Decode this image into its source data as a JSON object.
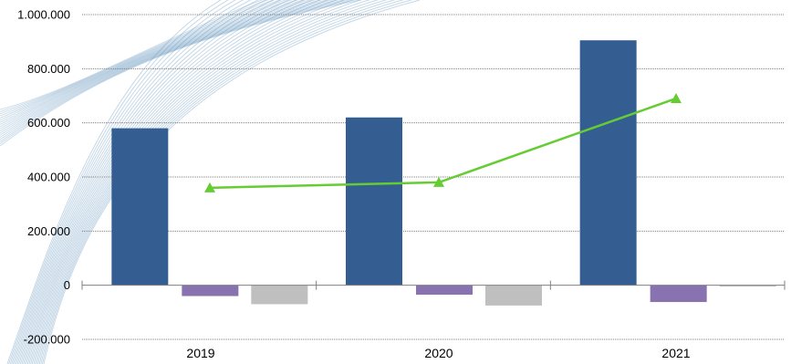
{
  "chart_data": {
    "type": "bar",
    "categories": [
      "2019",
      "2020",
      "2021"
    ],
    "series": [
      {
        "type": "bar",
        "values": [
          580000,
          620000,
          905000
        ],
        "color": "#345E91"
      },
      {
        "type": "bar",
        "values": [
          -40000,
          -35000,
          -62000
        ],
        "color": "#8872B0"
      },
      {
        "type": "bar",
        "values": [
          -70000,
          -75000,
          -5000
        ],
        "color": "#BFBFBF"
      },
      {
        "type": "line",
        "values": [
          360000,
          380000,
          690000
        ],
        "color": "#66CC33",
        "marker": "triangle"
      }
    ],
    "y_ticks": [
      {
        "value": 1000000,
        "label": "1.000.000"
      },
      {
        "value": 800000,
        "label": "800.000"
      },
      {
        "value": 600000,
        "label": "600.000"
      },
      {
        "value": 400000,
        "label": "400.000"
      },
      {
        "value": 200000,
        "label": "200.000"
      },
      {
        "value": 0,
        "label": "0"
      },
      {
        "value": -200000,
        "label": "-200.000"
      }
    ],
    "ylim": [
      -200000,
      1000000
    ],
    "grid": true,
    "legend": "none"
  },
  "background": {
    "decoration": "swoosh-lines",
    "color": "#5B8FB9"
  }
}
